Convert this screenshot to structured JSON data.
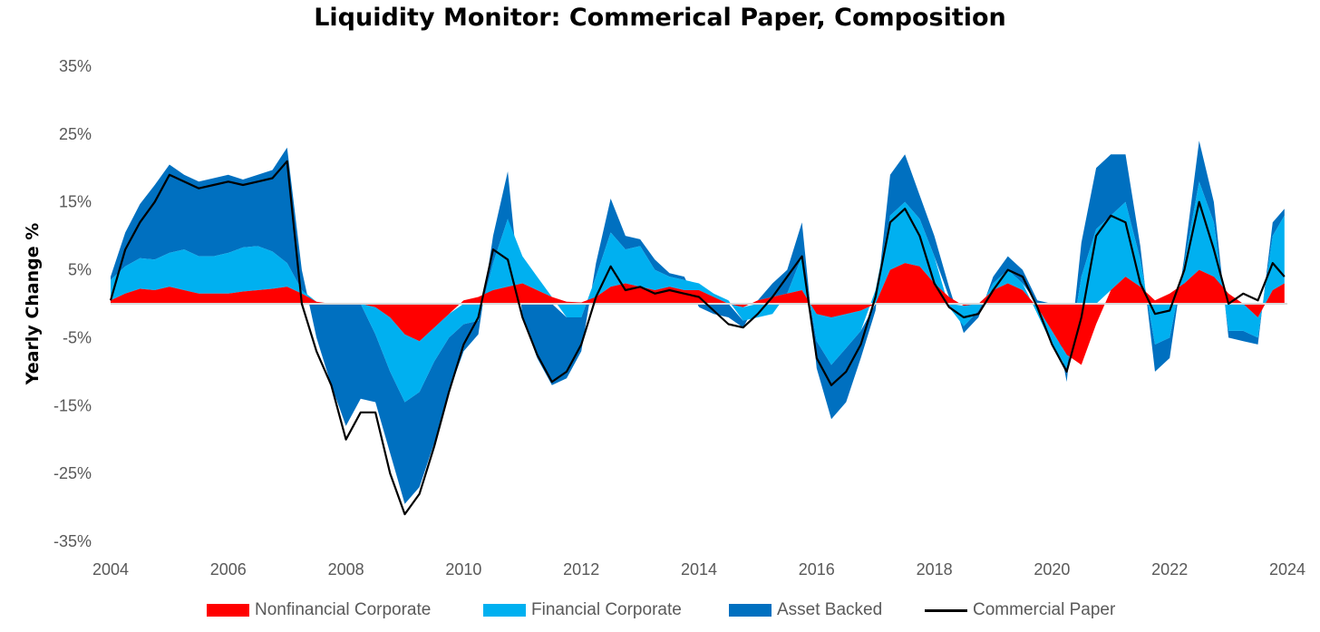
{
  "chart_data": {
    "type": "area",
    "title": "Liquidity Monitor: Commerical Paper, Composition",
    "ylabel": "Yearly Change %",
    "xlabel": "",
    "xlim": [
      2004,
      2024
    ],
    "ylim": [
      -35,
      35
    ],
    "x_ticks": [
      "2004",
      "2006",
      "2008",
      "2010",
      "2012",
      "2014",
      "2016",
      "2018",
      "2020",
      "2022",
      "2024"
    ],
    "y_ticks": [
      "35%",
      "25%",
      "15%",
      "5%",
      "-5%",
      "-15%",
      "-25%",
      "-35%"
    ],
    "grid": false,
    "legend_position": "bottom",
    "x": [
      2004.0,
      2004.25,
      2004.5,
      2004.75,
      2005.0,
      2005.25,
      2005.5,
      2005.75,
      2006.0,
      2006.25,
      2006.5,
      2006.75,
      2007.0,
      2007.25,
      2007.5,
      2007.75,
      2008.0,
      2008.25,
      2008.5,
      2008.75,
      2009.0,
      2009.25,
      2009.5,
      2009.75,
      2010.0,
      2010.25,
      2010.5,
      2010.75,
      2011.0,
      2011.25,
      2011.5,
      2011.75,
      2012.0,
      2012.25,
      2012.5,
      2012.75,
      2013.0,
      2013.25,
      2013.5,
      2013.75,
      2014.0,
      2014.25,
      2014.5,
      2014.75,
      2015.0,
      2015.25,
      2015.5,
      2015.75,
      2016.0,
      2016.25,
      2016.5,
      2016.75,
      2017.0,
      2017.25,
      2017.5,
      2017.75,
      2018.0,
      2018.25,
      2018.5,
      2018.75,
      2019.0,
      2019.25,
      2019.5,
      2019.75,
      2020.0,
      2020.25,
      2020.5,
      2020.75,
      2021.0,
      2021.25,
      2021.5,
      2021.75,
      2022.0,
      2022.25,
      2022.5,
      2022.75,
      2023.0,
      2023.25,
      2023.5,
      2023.75,
      2023.95
    ],
    "series": [
      {
        "name": "Nonfinancial Corporate",
        "color": "#FF0000",
        "values": [
          0.5,
          1.5,
          2.2,
          2.0,
          2.5,
          2.0,
          1.5,
          1.5,
          1.5,
          1.8,
          2.0,
          2.2,
          2.5,
          1.5,
          0.3,
          0.0,
          0.0,
          0.0,
          -0.5,
          -2.0,
          -4.5,
          -5.5,
          -3.5,
          -1.5,
          0.5,
          1.0,
          2.0,
          2.5,
          3.0,
          2.0,
          1.0,
          0.3,
          0.2,
          1.0,
          2.5,
          3.0,
          2.5,
          2.0,
          2.5,
          2.0,
          2.0,
          1.0,
          0.0,
          -0.5,
          0.5,
          1.0,
          1.5,
          2.0,
          -1.5,
          -2.0,
          -1.5,
          -1.0,
          0.0,
          5.0,
          6.0,
          5.5,
          3.0,
          1.0,
          -0.3,
          0.0,
          2.0,
          3.0,
          2.0,
          -0.5,
          -4.0,
          -7.5,
          -9.0,
          -3.0,
          2.0,
          4.0,
          2.5,
          0.5,
          1.5,
          3.0,
          5.0,
          4.0,
          1.5,
          0.0,
          -2.0,
          2.0,
          3.0
        ]
      },
      {
        "name": "Financial Corporate",
        "color": "#00B0F0",
        "values": [
          3.0,
          4.0,
          4.5,
          4.5,
          5.0,
          6.0,
          5.5,
          5.5,
          6.0,
          6.5,
          6.5,
          5.5,
          3.5,
          0.5,
          0.0,
          0.0,
          0.0,
          0.0,
          -4.0,
          -8.0,
          -10.0,
          -7.5,
          -5.0,
          -3.5,
          -3.0,
          -2.5,
          4.0,
          10.0,
          4.0,
          2.0,
          0.0,
          -2.0,
          -2.0,
          3.0,
          8.0,
          5.0,
          6.0,
          3.0,
          1.5,
          1.5,
          1.0,
          0.5,
          0.5,
          -2.0,
          -2.0,
          -1.5,
          0.0,
          5.0,
          -4.0,
          -7.0,
          -5.0,
          -3.0,
          2.0,
          8.0,
          9.0,
          7.0,
          4.0,
          -0.5,
          -3.0,
          -1.0,
          1.0,
          2.0,
          1.0,
          -1.0,
          -2.0,
          -2.0,
          4.0,
          11.0,
          11.0,
          11.0,
          4.0,
          -6.0,
          -5.0,
          3.0,
          13.0,
          8.0,
          -4.0,
          -4.0,
          -3.0,
          8.0,
          10.0
        ]
      },
      {
        "name": "Asset Backed",
        "color": "#0070C0",
        "values": [
          0.5,
          5.0,
          8.0,
          11.0,
          13.0,
          11.0,
          11.0,
          11.5,
          11.5,
          10.0,
          10.5,
          12.0,
          17.0,
          3.0,
          -5.0,
          -12.0,
          -18.0,
          -14.0,
          -10.0,
          -12.0,
          -15.0,
          -14.0,
          -12.0,
          -8.0,
          -4.0,
          -2.0,
          4.0,
          7.0,
          -2.0,
          -8.0,
          -12.0,
          -9.0,
          -5.0,
          2.0,
          5.0,
          2.0,
          1.0,
          1.5,
          0.5,
          0.5,
          -0.5,
          -1.5,
          -2.0,
          -1.0,
          0.0,
          2.0,
          3.5,
          5.0,
          -4.0,
          -8.0,
          -8.0,
          -4.0,
          -1.0,
          6.0,
          7.0,
          3.5,
          3.0,
          1.5,
          -1.0,
          -1.0,
          1.0,
          2.0,
          2.0,
          0.5,
          0.0,
          -2.0,
          5.0,
          9.0,
          9.0,
          7.0,
          2.0,
          -4.0,
          -3.0,
          1.0,
          6.0,
          3.0,
          -1.0,
          -1.5,
          -1.0,
          2.0,
          1.0
        ]
      },
      {
        "name": "Commercial Paper",
        "color": "#000000",
        "values": [
          0.5,
          8.0,
          12.0,
          15.0,
          19.0,
          18.0,
          17.0,
          17.5,
          18.0,
          17.5,
          18.0,
          18.5,
          21.0,
          0.0,
          -7.0,
          -12.0,
          -20.0,
          -16.0,
          -16.0,
          -25.0,
          -31.0,
          -28.0,
          -21.0,
          -13.0,
          -6.0,
          -2.0,
          8.0,
          6.5,
          -2.0,
          -7.5,
          -11.5,
          -10.0,
          -6.0,
          1.0,
          5.5,
          2.0,
          2.5,
          1.5,
          2.0,
          1.5,
          1.0,
          -1.0,
          -3.0,
          -3.5,
          -1.5,
          1.0,
          4.0,
          7.0,
          -8.0,
          -12.0,
          -10.0,
          -6.0,
          1.0,
          12.0,
          14.0,
          10.0,
          3.0,
          -0.5,
          -2.0,
          -1.5,
          2.0,
          5.0,
          4.0,
          -0.5,
          -6.0,
          -10.0,
          -2.0,
          10.0,
          13.0,
          12.0,
          3.0,
          -1.5,
          -1.0,
          5.0,
          15.0,
          8.0,
          0.0,
          1.5,
          0.5,
          6.0,
          4.0
        ]
      }
    ]
  }
}
